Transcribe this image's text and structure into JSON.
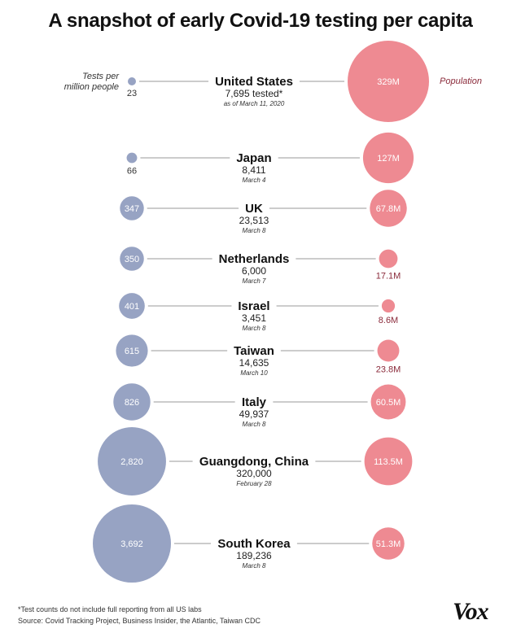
{
  "title": "A snapshot of early Covid-19 testing per capita",
  "legend": {
    "tests_label_line1": "Tests per",
    "tests_label_line2": "million people",
    "population_label": "Population"
  },
  "colors": {
    "tests": "#97a3c3",
    "population": "#ee8a92",
    "line": "#999999"
  },
  "chart_data": {
    "type": "bubble",
    "title": "A snapshot of early Covid-19 testing per capita",
    "left_measure": "Tests per million people",
    "right_measure": "Population",
    "rows": [
      {
        "country": "United States",
        "tests_per_million": 23,
        "tests_label": "23",
        "tested": "7,695 tested*",
        "date": "as of March 11, 2020",
        "population_m": 329,
        "population_label": "329M"
      },
      {
        "country": "Japan",
        "tests_per_million": 66,
        "tests_label": "66",
        "tested": "8,411",
        "date": "March 4",
        "population_m": 127,
        "population_label": "127M"
      },
      {
        "country": "UK",
        "tests_per_million": 347,
        "tests_label": "347",
        "tested": "23,513",
        "date": "March 8",
        "population_m": 67.8,
        "population_label": "67.8M"
      },
      {
        "country": "Netherlands",
        "tests_per_million": 350,
        "tests_label": "350",
        "tested": "6,000",
        "date": "March 7",
        "population_m": 17.1,
        "population_label": "17.1M"
      },
      {
        "country": "Israel",
        "tests_per_million": 401,
        "tests_label": "401",
        "tested": "3,451",
        "date": "March 8",
        "population_m": 8.6,
        "population_label": "8.6M"
      },
      {
        "country": "Taiwan",
        "tests_per_million": 615,
        "tests_label": "615",
        "tested": "14,635",
        "date": "March 10",
        "population_m": 23.8,
        "population_label": "23.8M"
      },
      {
        "country": "Italy",
        "tests_per_million": 826,
        "tests_label": "826",
        "tested": "49,937",
        "date": "March 8",
        "population_m": 60.5,
        "population_label": "60.5M"
      },
      {
        "country": "Guangdong, China",
        "tests_per_million": 2820,
        "tests_label": "2,820",
        "tested": "320,000",
        "date": "February 28",
        "population_m": 113.5,
        "population_label": "113.5M"
      },
      {
        "country": "South Korea",
        "tests_per_million": 3692,
        "tests_label": "3,692",
        "tested": "189,236",
        "date": "March 8",
        "population_m": 51.3,
        "population_label": "51.3M"
      }
    ]
  },
  "footnote": "*Test counts do not include full reporting from all US labs",
  "source": "Source: Covid Tracking Project, Business Insider, the Atlantic, Taiwan CDC",
  "logo": "Vox"
}
